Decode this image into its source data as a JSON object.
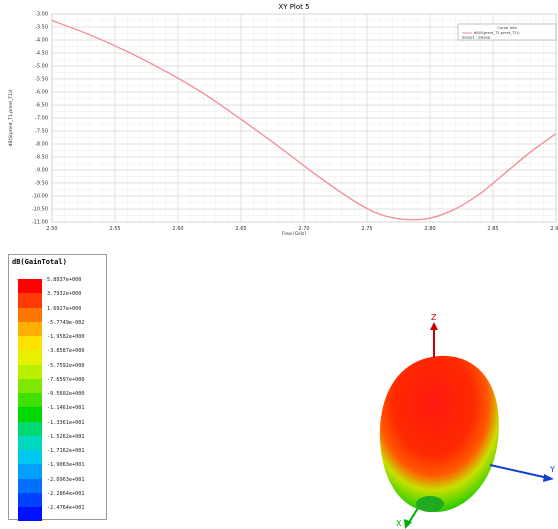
{
  "plot": {
    "title": "XY Plot 5",
    "legend": {
      "header": "Curve Info",
      "trace": "dB(S(prent_T1,prent_T1))",
      "setup": "Setup1 : Sweep"
    },
    "ylabel": "dB(S(prent_T1,prent_T1))",
    "xlabel": "Freq [GHz]",
    "trace_color": "#f28b94"
  },
  "chart_data": {
    "type": "line",
    "title": "XY Plot 5",
    "xlabel": "Freq [GHz]",
    "ylabel": "dB(S(prent_T1,prent_T1))",
    "x_ticks": [
      "2.50",
      "2.55",
      "2.60",
      "2.65",
      "2.70",
      "2.75",
      "2.80",
      "2.85",
      "2.90"
    ],
    "y_ticks": [
      "-3.00",
      "-3.50",
      "-4.00",
      "-4.50",
      "-5.00",
      "-5.50",
      "-6.00",
      "-6.50",
      "-7.00",
      "-7.50",
      "-8.00",
      "-8.50",
      "-9.00",
      "-9.50",
      "-10.00",
      "-10.50",
      "-11.00"
    ],
    "xlim": [
      2.5,
      2.9
    ],
    "ylim": [
      -11.0,
      -3.0
    ],
    "grid": true,
    "legend_position": "top-right",
    "series": [
      {
        "name": "dB(S(prent_T1,prent_T1))",
        "x": [
          2.5,
          2.53,
          2.56,
          2.59,
          2.62,
          2.65,
          2.68,
          2.71,
          2.74,
          2.76,
          2.78,
          2.8,
          2.82,
          2.84,
          2.86,
          2.88,
          2.9
        ],
        "y": [
          -3.25,
          -3.8,
          -4.45,
          -5.2,
          -6.05,
          -7.05,
          -8.1,
          -9.2,
          -10.2,
          -10.7,
          -10.9,
          -10.85,
          -10.5,
          -9.9,
          -9.1,
          -8.3,
          -7.6
        ]
      }
    ]
  },
  "gain_legend": {
    "title": "dB(GainTotal)",
    "values": [
      "5.8937e+000",
      "3.7932e+000",
      "1.6927e+000",
      "-5.7749e-002",
      "-1.9582e+000",
      "-3.8587e+000",
      "-5.7592e+000",
      "-7.6597e+000",
      "-9.5602e+000",
      "-1.1461e+001",
      "-1.3361e+001",
      "-1.5262e+001",
      "-1.7162e+001",
      "-1.9063e+001",
      "-2.0963e+001",
      "-2.2864e+001",
      "-2.4764e+001"
    ],
    "colors": [
      "#ff0000",
      "#ff3a00",
      "#ff7600",
      "#ffb000",
      "#ffe000",
      "#e6f000",
      "#b8f000",
      "#80e800",
      "#40e000",
      "#00d800",
      "#00d870",
      "#00d8c0",
      "#00c8f0",
      "#00a0ff",
      "#0070ff",
      "#0040ff",
      "#0010ff"
    ]
  },
  "view3d": {
    "axis_z": "Z",
    "axis_y": "Y",
    "axis_x": "X",
    "axis_z_color": "#cc0000",
    "axis_y_color": "#1040d0",
    "axis_x_color": "#00b000"
  }
}
